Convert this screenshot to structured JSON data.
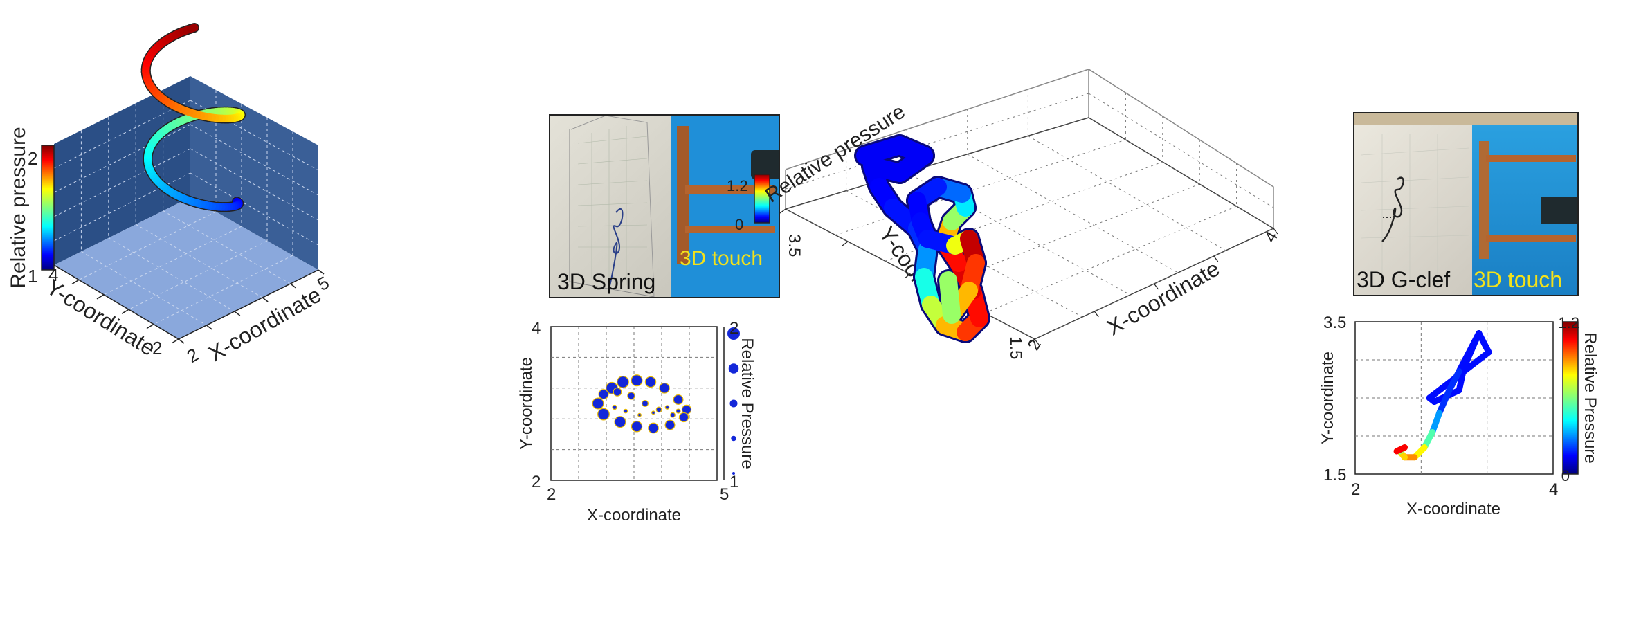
{
  "panel1": {
    "zlabel": "Relative pressure",
    "xlabel": "X-coordinate",
    "ylabel": "Y-coordinate",
    "cbar_ticks": [
      "2",
      "1"
    ],
    "x_ticks": [
      "2",
      "5"
    ],
    "y_ticks": [
      "4",
      "2"
    ],
    "colors": {
      "wall": "#2b4f86",
      "floor": "#8aa8dc",
      "back_wall": "#3a5f97"
    }
  },
  "photo1": {
    "caption_left": "3D Spring",
    "caption_right": "3D touch",
    "colors": {
      "caption_right": "#f3e11b",
      "right_bg": "#1f8fd8"
    }
  },
  "panel2": {
    "xlabel": "X-coordinate",
    "ylabel": "Y-coordinate",
    "size_legend_label": "Relative Pressure",
    "x_ticks": [
      "2",
      "5"
    ],
    "y_ticks": [
      "4",
      "2"
    ],
    "size_legend_ticks": [
      "2",
      "1"
    ],
    "colors": {
      "marker": "#1327d9",
      "edge": "#e6b800"
    }
  },
  "panel3": {
    "zlabel": "Relative pressure",
    "xlabel": "X-coordinate",
    "ylabel": "Y-coordinate",
    "cbar_ticks": [
      "1.2",
      "0"
    ],
    "x_ticks": [
      "2",
      "4"
    ],
    "y_ticks": [
      "3.5",
      "1.5"
    ]
  },
  "photo2": {
    "caption_left": "3D G-clef",
    "caption_right": "3D touch",
    "colors": {
      "caption_right": "#f3e11b"
    }
  },
  "panel4": {
    "xlabel": "X-coordinate",
    "ylabel": "Y-coordinate",
    "cbar_label": "Relative Pressure",
    "x_ticks": [
      "2",
      "4"
    ],
    "y_ticks": [
      "3.5",
      "1.5"
    ],
    "cbar_ticks": [
      "1.2",
      "0"
    ]
  },
  "chart_data": [
    {
      "type": "scatter",
      "panel": "3D spring trajectory (3D view)",
      "xlabel": "X-coordinate",
      "ylabel": "Y-coordinate",
      "zlabel": "Relative pressure",
      "xlim": [
        2,
        5
      ],
      "ylim": [
        2,
        4
      ],
      "zlim": [
        1,
        2
      ],
      "colorbar": {
        "min": 1,
        "max": 2,
        "colormap": "jet"
      }
    },
    {
      "type": "scatter",
      "panel": "3D spring (2D projection, marker size = pressure)",
      "xlabel": "X-coordinate",
      "ylabel": "Y-coordinate",
      "xlim": [
        2,
        5
      ],
      "ylim": [
        2,
        4
      ],
      "size_legend": {
        "label": "Relative Pressure",
        "min": 1,
        "max": 2
      },
      "points": [
        {
          "x": 3.1,
          "y": 3.2,
          "p": 1.9
        },
        {
          "x": 3.3,
          "y": 3.28,
          "p": 1.9
        },
        {
          "x": 3.55,
          "y": 3.3,
          "p": 1.85
        },
        {
          "x": 3.8,
          "y": 3.28,
          "p": 1.8
        },
        {
          "x": 4.05,
          "y": 3.2,
          "p": 1.75
        },
        {
          "x": 4.3,
          "y": 3.05,
          "p": 1.7
        },
        {
          "x": 4.45,
          "y": 2.92,
          "p": 1.65
        },
        {
          "x": 4.4,
          "y": 2.82,
          "p": 1.65
        },
        {
          "x": 4.15,
          "y": 2.72,
          "p": 1.7
        },
        {
          "x": 3.85,
          "y": 2.68,
          "p": 1.75
        },
        {
          "x": 3.55,
          "y": 2.7,
          "p": 1.8
        },
        {
          "x": 3.25,
          "y": 2.76,
          "p": 1.85
        },
        {
          "x": 2.95,
          "y": 2.86,
          "p": 1.9
        },
        {
          "x": 2.85,
          "y": 3.0,
          "p": 1.85
        },
        {
          "x": 2.95,
          "y": 3.12,
          "p": 1.7
        },
        {
          "x": 3.2,
          "y": 3.15,
          "p": 1.55
        },
        {
          "x": 3.45,
          "y": 3.1,
          "p": 1.45
        },
        {
          "x": 3.7,
          "y": 3.0,
          "p": 1.35
        },
        {
          "x": 3.95,
          "y": 2.92,
          "p": 1.25
        },
        {
          "x": 4.2,
          "y": 2.85,
          "p": 1.2
        },
        {
          "x": 4.3,
          "y": 2.9,
          "p": 1.15
        },
        {
          "x": 4.1,
          "y": 2.95,
          "p": 1.1
        },
        {
          "x": 3.85,
          "y": 2.88,
          "p": 1.05
        },
        {
          "x": 3.6,
          "y": 2.85,
          "p": 1.05
        },
        {
          "x": 3.35,
          "y": 2.9,
          "p": 1.1
        },
        {
          "x": 3.15,
          "y": 2.95,
          "p": 1.15
        }
      ]
    },
    {
      "type": "scatter",
      "panel": "3D G-clef trajectory (3D view)",
      "xlabel": "X-coordinate",
      "ylabel": "Y-coordinate",
      "zlabel": "Relative pressure",
      "xlim": [
        2,
        4
      ],
      "ylim": [
        1.5,
        3.5
      ],
      "zlim": [
        0,
        1.2
      ],
      "colorbar": {
        "min": 0,
        "max": 1.2,
        "colormap": "jet"
      }
    },
    {
      "type": "line",
      "panel": "3D G-clef (2D projection, color = pressure)",
      "xlabel": "X-coordinate",
      "ylabel": "Y-coordinate",
      "xlim": [
        2,
        4
      ],
      "ylim": [
        1.5,
        3.5
      ],
      "colorbar": {
        "label": "Relative Pressure",
        "min": 0,
        "max": 1.2,
        "colormap": "jet"
      },
      "points": [
        {
          "x": 3.25,
          "y": 3.35,
          "p": 0.05
        },
        {
          "x": 3.35,
          "y": 3.1,
          "p": 0.05
        },
        {
          "x": 3.1,
          "y": 2.85,
          "p": 0.05
        },
        {
          "x": 2.75,
          "y": 2.5,
          "p": 0.05
        },
        {
          "x": 2.8,
          "y": 2.45,
          "p": 0.05
        },
        {
          "x": 3.05,
          "y": 2.6,
          "p": 0.05
        },
        {
          "x": 3.1,
          "y": 2.9,
          "p": 0.05
        },
        {
          "x": 3.25,
          "y": 3.35,
          "p": 0.05
        },
        {
          "x": 3.05,
          "y": 2.85,
          "p": 0.1
        },
        {
          "x": 2.95,
          "y": 2.6,
          "p": 0.1
        },
        {
          "x": 2.85,
          "y": 2.3,
          "p": 0.25
        },
        {
          "x": 2.78,
          "y": 2.05,
          "p": 0.5
        },
        {
          "x": 2.7,
          "y": 1.85,
          "p": 0.75
        },
        {
          "x": 2.6,
          "y": 1.72,
          "p": 0.9
        },
        {
          "x": 2.5,
          "y": 1.72,
          "p": 0.8
        },
        {
          "x": 2.45,
          "y": 1.8,
          "p": 0.6
        },
        {
          "x": 2.5,
          "y": 1.85,
          "p": 1.1
        },
        {
          "x": 2.42,
          "y": 1.8,
          "p": 1.2
        }
      ]
    }
  ]
}
